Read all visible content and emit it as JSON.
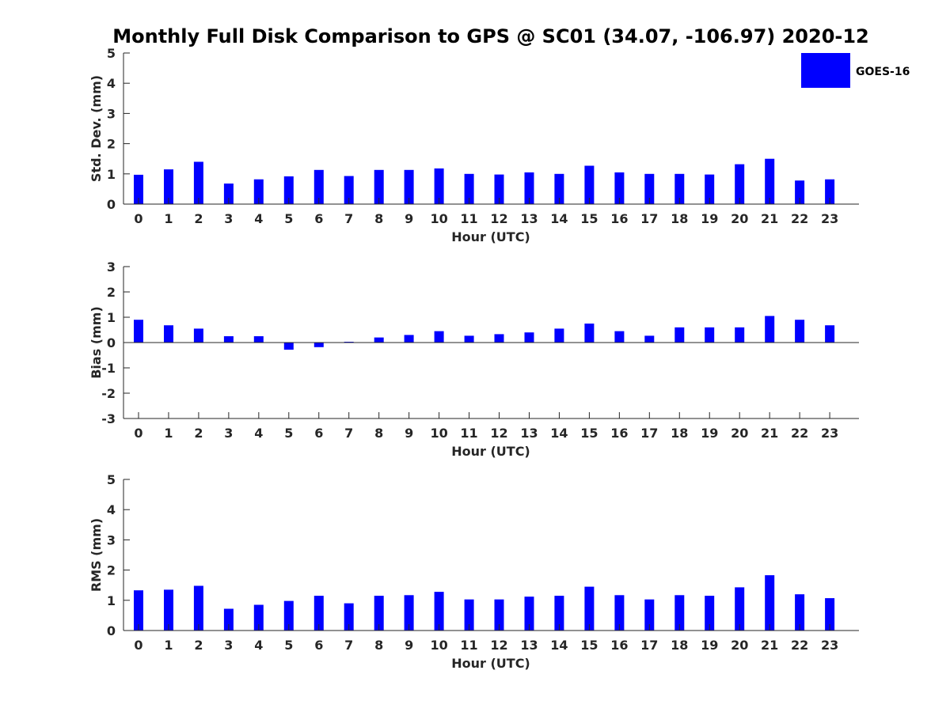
{
  "title": "Monthly Full Disk Comparison to GPS @ SC01 (34.07, -106.97) 2020-12",
  "legend": {
    "label": "GOES-16",
    "color": "#0000ff",
    "placement": "top-right"
  },
  "chart_data": [
    {
      "type": "bar",
      "xlabel": "Hour (UTC)",
      "ylabel": "Std. Dev. (mm)",
      "ylim": [
        0,
        5
      ],
      "yticks": [
        0,
        1,
        2,
        3,
        4,
        5
      ],
      "categories": [
        "0",
        "1",
        "2",
        "3",
        "4",
        "5",
        "6",
        "7",
        "8",
        "9",
        "10",
        "11",
        "12",
        "13",
        "14",
        "15",
        "16",
        "17",
        "18",
        "19",
        "20",
        "21",
        "22",
        "23"
      ],
      "series": [
        {
          "name": "GOES-16",
          "color": "#0000ff",
          "values": [
            0.97,
            1.15,
            1.4,
            0.68,
            0.82,
            0.92,
            1.13,
            0.93,
            1.13,
            1.13,
            1.18,
            1.0,
            0.98,
            1.05,
            1.0,
            1.27,
            1.05,
            1.0,
            1.0,
            0.98,
            1.32,
            1.5,
            0.78,
            0.82
          ]
        }
      ]
    },
    {
      "type": "bar",
      "xlabel": "Hour (UTC)",
      "ylabel": "Bias (mm)",
      "ylim": [
        -3,
        3
      ],
      "yticks": [
        -3,
        -2,
        -1,
        0,
        1,
        2,
        3
      ],
      "categories": [
        "0",
        "1",
        "2",
        "3",
        "4",
        "5",
        "6",
        "7",
        "8",
        "9",
        "10",
        "11",
        "12",
        "13",
        "14",
        "15",
        "16",
        "17",
        "18",
        "19",
        "20",
        "21",
        "22",
        "23"
      ],
      "series": [
        {
          "name": "GOES-16",
          "color": "#0000ff",
          "values": [
            0.9,
            0.68,
            0.55,
            0.25,
            0.25,
            -0.28,
            -0.18,
            0.03,
            0.2,
            0.3,
            0.45,
            0.27,
            0.33,
            0.4,
            0.55,
            0.75,
            0.45,
            0.27,
            0.6,
            0.6,
            0.6,
            1.05,
            0.9,
            0.68
          ]
        }
      ]
    },
    {
      "type": "bar",
      "xlabel": "Hour (UTC)",
      "ylabel": "RMS (mm)",
      "ylim": [
        0,
        5
      ],
      "yticks": [
        0,
        1,
        2,
        3,
        4,
        5
      ],
      "categories": [
        "0",
        "1",
        "2",
        "3",
        "4",
        "5",
        "6",
        "7",
        "8",
        "9",
        "10",
        "11",
        "12",
        "13",
        "14",
        "15",
        "16",
        "17",
        "18",
        "19",
        "20",
        "21",
        "22",
        "23"
      ],
      "series": [
        {
          "name": "GOES-16",
          "color": "#0000ff",
          "values": [
            1.33,
            1.35,
            1.48,
            0.72,
            0.85,
            0.98,
            1.15,
            0.9,
            1.15,
            1.17,
            1.28,
            1.03,
            1.03,
            1.12,
            1.15,
            1.45,
            1.17,
            1.03,
            1.17,
            1.15,
            1.43,
            1.83,
            1.2,
            1.07
          ]
        }
      ]
    }
  ]
}
